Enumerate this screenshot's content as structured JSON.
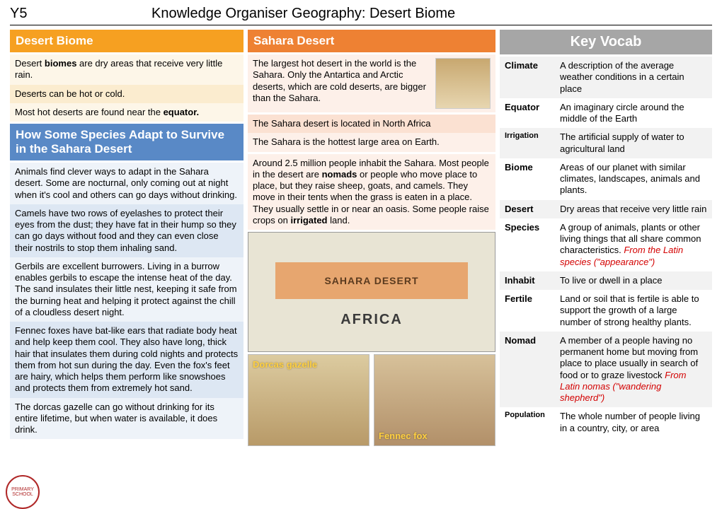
{
  "title": {
    "year": "Y5",
    "text": "Knowledge Organiser Geography: Desert Biome"
  },
  "colA": {
    "biome_hdr": "Desert Biome",
    "biome_rows": [
      {
        "html": "Desert <b>biomes</b> are dry areas that receive very little rain."
      },
      {
        "html": "Deserts can be hot or cold."
      },
      {
        "html": "Most hot deserts are found near the <b>equator.</b>"
      }
    ],
    "adapt_hdr": "How Some Species Adapt to Survive in the Sahara Desert",
    "adapt_rows": [
      "Animals find clever ways to adapt in the Sahara desert. Some are nocturnal, only coming out at night when it's cool and others can go days without drinking.",
      "Camels have two rows of eyelashes to protect their eyes from the dust; they have fat in their hump so they can go days without food and they can even close their nostrils to stop them inhaling sand.",
      "Gerbils are excellent burrowers. Living in a burrow enables gerbils to escape the intense heat of the day. The sand insulates their little nest, keeping it safe from the burning heat and helping it protect against the chill of a cloudless desert night.",
      "Fennec foxes have bat-like ears that radiate body heat and help keep them cool. They also have long, thick hair that insulates them during cold nights and protects them from hot sun during the day. Even the fox's feet are hairy, which helps them perform like snowshoes and protects them from extremely hot sand.",
      "The dorcas gazelle can go without drinking for its entire lifetime, but when water is available, it does drink."
    ]
  },
  "colB": {
    "sahara_hdr": "Sahara Desert",
    "camel_text": "The largest hot desert in the world is the Sahara. Only the  Antartica and Arctic deserts, which are cold deserts, are bigger than the Sahara.",
    "rows": [
      "The Sahara desert is located in North Africa",
      "The Sahara is the hottest large area on Earth."
    ],
    "nomads": {
      "html": "Around 2.5 million people inhabit the Sahara. Most people in the desert are <b>nomads</b> or people who move place to place, but they raise sheep, goats, and camels. They move in their tents when the grass is eaten in a place. They usually settle in or near an oasis. Some people raise crops on <b>irrigated</b> land."
    },
    "map": {
      "sahara": "SAHARA DESERT",
      "africa": "AFRICA"
    },
    "captions": {
      "gazelle": "Dorcas gazelle",
      "fennec": "Fennec fox"
    }
  },
  "vocab": {
    "hdr": "Key Vocab",
    "rows": [
      {
        "term": "Climate",
        "def": "A description of the average weather conditions in a certain place"
      },
      {
        "term": "Equator",
        "def": "An imaginary circle around the middle of the Earth"
      },
      {
        "term": "Irrigation",
        "small": true,
        "def": "The artificial supply of water to agricultural land"
      },
      {
        "term": "Biome",
        "def": "Areas of our planet with similar climates, landscapes, animals and plants."
      },
      {
        "term": "Desert",
        "def": "Dry areas that receive very little rain"
      },
      {
        "term": "Species",
        "def": "A group of animals, plants or other living things that all share common characteristics.",
        "etym": "From the Latin species (\"appearance\")"
      },
      {
        "term": "Inhabit",
        "def": "To live or dwell in a place"
      },
      {
        "term": "Fertile",
        "def": "Land or soil that is fertile is able to support the growth of a large number of strong healthy plants."
      },
      {
        "term": "Nomad",
        "def": "A member of a people having no permanent home but moving from place to place usually in search of food or to graze livestock",
        "etym": "From Latin nomas (\"wandering shepherd\")"
      },
      {
        "term": "Population",
        "small": true,
        "def": "The whole number of people living in a country, city, or area"
      }
    ]
  },
  "colors": {
    "orange": "#f6a021",
    "orange2": "#ee8133",
    "blue": "#5989c6",
    "grey": "#a6a6a6",
    "etym": "#d30000",
    "caption": "#ffd040"
  }
}
